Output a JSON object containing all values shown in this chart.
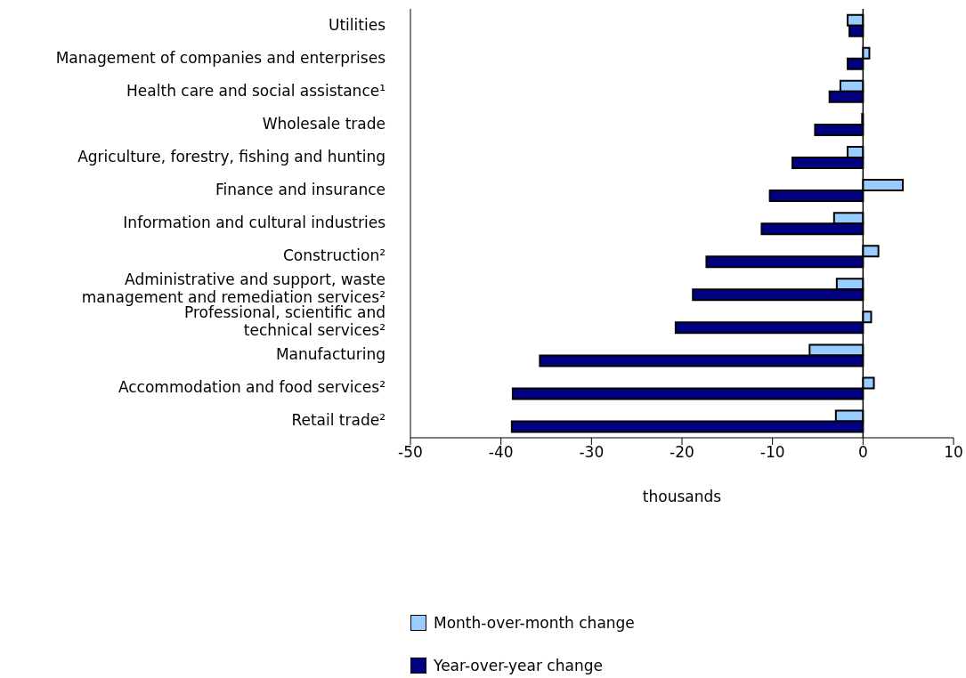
{
  "chart_data": {
    "type": "bar",
    "orientation": "horizontal",
    "xlabel": "thousands",
    "categories": [
      "Utilities",
      "Management of companies and enterprises",
      "Health care and social assistance¹",
      "Wholesale trade",
      "Agriculture, forestry, fishing and hunting",
      "Finance and insurance",
      "Information and cultural industries",
      "Construction²",
      "Administrative and support, waste\nmanagement and remediation services²",
      "Professional, scientific and\ntechnical services²",
      "Manufacturing",
      "Accommodation and food services²",
      "Retail trade²"
    ],
    "series": [
      {
        "name": "Month-over-month change",
        "color": "#99ccff",
        "values": [
          -1.7,
          0.7,
          -2.5,
          -0.1,
          -1.7,
          4.4,
          -3.2,
          1.7,
          -2.9,
          0.9,
          -5.9,
          1.2,
          -3.0
        ]
      },
      {
        "name": "Year-over-year change",
        "color": "#000080",
        "values": [
          -1.5,
          -1.7,
          -3.7,
          -5.3,
          -7.8,
          -10.3,
          -11.2,
          -17.3,
          -18.8,
          -20.7,
          -35.7,
          -38.7,
          -38.8
        ]
      }
    ],
    "xlim": [
      -50,
      10
    ],
    "xticks": [
      -50,
      -40,
      -30,
      -20,
      -10,
      0,
      10
    ],
    "ref_lines": [
      {
        "axis": "x",
        "value": 0,
        "color": "#000000"
      }
    ],
    "grid": false,
    "legend": "bottom"
  }
}
